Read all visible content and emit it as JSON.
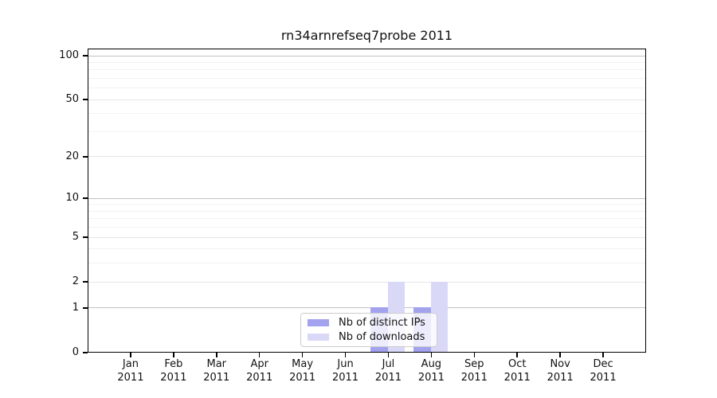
{
  "chart_data": {
    "type": "bar",
    "title": "rn34arnrefseq7probe 2011",
    "x_axis": {
      "categories": [
        "Jan",
        "Feb",
        "Mar",
        "Apr",
        "May",
        "Jun",
        "Jul",
        "Aug",
        "Sep",
        "Oct",
        "Nov",
        "Dec"
      ],
      "year_label": "2011"
    },
    "y_axis": {
      "scale": "log1p",
      "ticks": [
        0,
        1,
        2,
        5,
        10,
        20,
        50,
        100
      ],
      "ref_max": 100
    },
    "grid": {
      "decade_lines": [
        1,
        10,
        100
      ],
      "mid_lines": [
        2,
        5,
        20,
        50
      ],
      "minor_lines": [
        3,
        4,
        6,
        7,
        8,
        9,
        30,
        40,
        60,
        70,
        80,
        90
      ],
      "decade_color": "#c2c2c2",
      "mid_color": "#e6e6e6",
      "minor_color": "#f2f2f2"
    },
    "series": [
      {
        "name": "Nb of distinct IPs",
        "color": "#a2a2ef",
        "values": [
          0,
          0,
          0,
          0,
          0,
          0,
          1,
          1,
          0,
          0,
          0,
          0
        ]
      },
      {
        "name": "Nb of downloads",
        "color": "#d9d9f7",
        "values": [
          0,
          0,
          0,
          0,
          0,
          0,
          2,
          2,
          0,
          0,
          0,
          0
        ]
      }
    ],
    "legend": {
      "position": "lower center"
    }
  }
}
